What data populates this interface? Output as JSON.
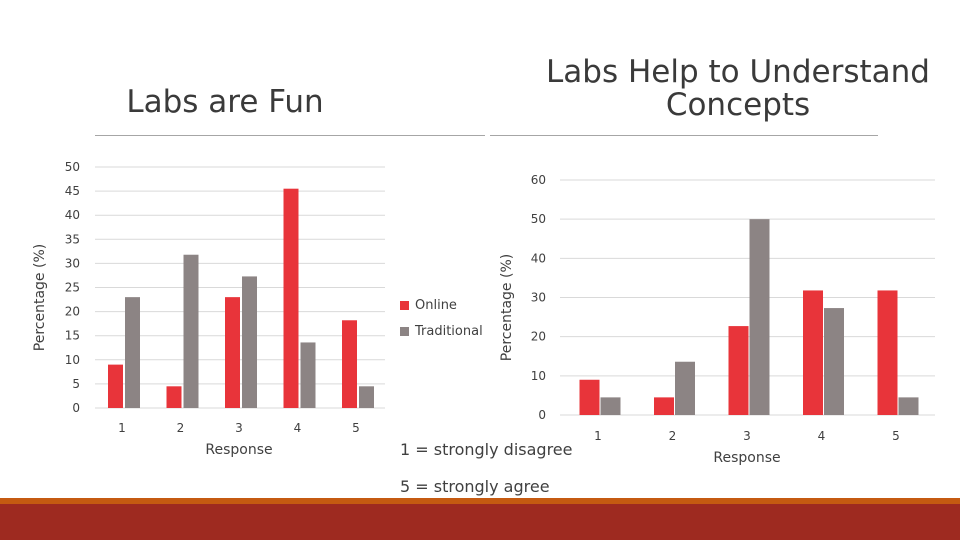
{
  "slide": {
    "left_title": "Labs are Fun",
    "right_title": "Labs Help to Understand Concepts",
    "scale_note_1": "1 = strongly disagree",
    "scale_note_2": "5 = strongly agree"
  },
  "colors": {
    "online": "#e8343a",
    "traditional": "#8c8484",
    "footer": "#9e2a20",
    "footer_accent": "#c55a11"
  },
  "chart_data": [
    {
      "type": "bar",
      "title": "Labs are Fun",
      "xlabel": "Response",
      "ylabel": "Percentage (%)",
      "categories": [
        "1",
        "2",
        "3",
        "4",
        "5"
      ],
      "series": [
        {
          "name": "Online",
          "values": [
            9,
            4.5,
            23,
            45.5,
            18.2
          ]
        },
        {
          "name": "Traditional",
          "values": [
            23,
            31.8,
            27.3,
            13.6,
            4.5
          ]
        }
      ],
      "ylim": [
        0,
        50
      ],
      "yticks": [
        0,
        5,
        10,
        15,
        20,
        25,
        30,
        35,
        40,
        45,
        50
      ],
      "grid": true,
      "legend": "right"
    },
    {
      "type": "bar",
      "title": "Labs Help to Understand Concepts",
      "xlabel": "Response",
      "ylabel": "Percentage (%)",
      "categories": [
        "1",
        "2",
        "3",
        "4",
        "5"
      ],
      "series": [
        {
          "name": "Online",
          "values": [
            9,
            4.5,
            22.7,
            31.8,
            31.8
          ]
        },
        {
          "name": "Traditional",
          "values": [
            4.5,
            13.6,
            50,
            27.3,
            4.5
          ]
        }
      ],
      "ylim": [
        0,
        60
      ],
      "yticks": [
        0,
        10,
        20,
        30,
        40,
        50,
        60
      ],
      "grid": true,
      "legend": "none"
    }
  ]
}
